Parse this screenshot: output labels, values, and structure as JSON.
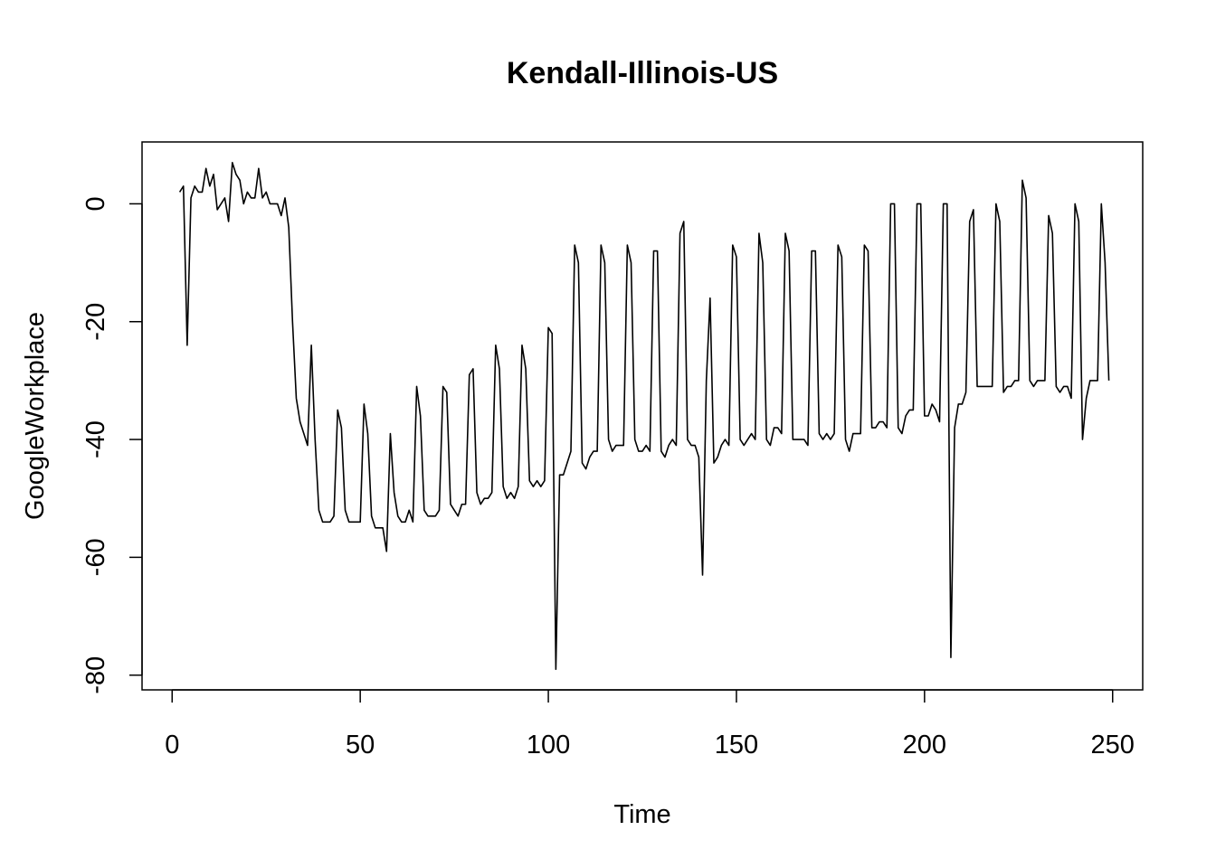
{
  "chart_data": {
    "type": "line",
    "title": "Kendall-Illinois-US",
    "xlabel": "Time",
    "ylabel": "GoogleWorkplace",
    "xlim": [
      -8,
      258
    ],
    "ylim": [
      -82.5,
      10.5
    ],
    "x_ticks": [
      0,
      50,
      100,
      150,
      200,
      250
    ],
    "y_ticks": [
      0,
      -20,
      -40,
      -60,
      -80
    ],
    "grid": false,
    "legend": "none",
    "line_color": "#000000",
    "series": [
      {
        "x_start": 2,
        "values": [
          2,
          3,
          -24,
          1,
          3,
          2,
          2,
          6,
          3,
          5,
          -1,
          0,
          1,
          -3,
          7,
          5,
          4,
          0,
          2,
          1,
          1,
          6,
          1,
          2,
          0,
          0,
          0,
          -2,
          1,
          -4,
          -20,
          -33,
          -37,
          -39,
          -41,
          -24,
          -40,
          -52,
          -54,
          -54,
          -54,
          -53,
          -35,
          -38,
          -52,
          -54,
          -54,
          -54,
          -54,
          -34,
          -39,
          -53,
          -55,
          -55,
          -55,
          -59,
          -39,
          -49,
          -53,
          -54,
          -54,
          -52,
          -54,
          -31,
          -36,
          -52,
          -53,
          -53,
          -53,
          -52,
          -31,
          -32,
          -51,
          -52,
          -53,
          -51,
          -51,
          -29,
          -28,
          -49,
          -51,
          -50,
          -50,
          -49,
          -24,
          -28,
          -48,
          -50,
          -49,
          -50,
          -48,
          -24,
          -28,
          -47,
          -48,
          -47,
          -48,
          -47,
          -21,
          -22,
          -79,
          -46,
          -46,
          -44,
          -42,
          -7,
          -10,
          -44,
          -45,
          -43,
          -42,
          -42,
          -7,
          -10,
          -40,
          -42,
          -41,
          -41,
          -41,
          -7,
          -10,
          -40,
          -42,
          -42,
          -41,
          -42,
          -8,
          -8,
          -42,
          -43,
          -41,
          -40,
          -41,
          -5,
          -3,
          -40,
          -41,
          -41,
          -43,
          -63,
          -30,
          -16,
          -44,
          -43,
          -41,
          -40,
          -41,
          -7,
          -9,
          -40,
          -41,
          -40,
          -39,
          -40,
          -5,
          -10,
          -40,
          -41,
          -38,
          -38,
          -39,
          -5,
          -8,
          -40,
          -40,
          -40,
          -40,
          -41,
          -8,
          -8,
          -39,
          -40,
          -39,
          -40,
          -39,
          -7,
          -9,
          -40,
          -42,
          -39,
          -39,
          -39,
          -7,
          -8,
          -38,
          -38,
          -37,
          -37,
          -38,
          0,
          0,
          -38,
          -39,
          -36,
          -35,
          -35,
          0,
          0,
          -36,
          -36,
          -34,
          -35,
          -37,
          0,
          0,
          -77,
          -38,
          -34,
          -34,
          -32,
          -3,
          -1,
          -31,
          -31,
          -31,
          -31,
          -31,
          0,
          -3,
          -32,
          -31,
          -31,
          -30,
          -30,
          4,
          1,
          -30,
          -31,
          -30,
          -30,
          -30,
          -2,
          -5,
          -31,
          -32,
          -31,
          -31,
          -33,
          0,
          -3,
          -40,
          -33,
          -30,
          -30,
          -30,
          0,
          -10,
          -30
        ]
      }
    ]
  }
}
